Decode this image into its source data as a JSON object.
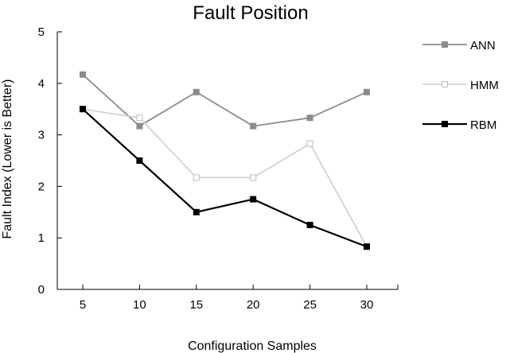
{
  "chart_data": {
    "type": "line",
    "title": "Fault Position",
    "xlabel": "Configuration Samples",
    "ylabel": "Fault Index (Lower is Better)",
    "x": [
      5,
      10,
      15,
      20,
      25,
      30
    ],
    "x_tick_labels": [
      "5",
      "10",
      "15",
      "20",
      "25",
      "30"
    ],
    "y_tick_labels": [
      "0",
      "1",
      "2",
      "3",
      "4",
      "5"
    ],
    "ylim": [
      0,
      5
    ],
    "grid": false,
    "legend_position": "right",
    "series": [
      {
        "name": "ANN",
        "values": [
          4.17,
          3.17,
          3.83,
          3.17,
          3.33,
          3.83
        ],
        "color": "#8c8c8c",
        "marker": "filled-square"
      },
      {
        "name": "HMM",
        "values": [
          3.5,
          3.33,
          2.17,
          2.17,
          2.83,
          0.83
        ],
        "color": "#d2d2d2",
        "marker": "open-square"
      },
      {
        "name": "RBM",
        "values": [
          3.5,
          2.5,
          1.5,
          1.75,
          1.25,
          0.83
        ],
        "color": "#000000",
        "marker": "filled-square"
      }
    ]
  }
}
